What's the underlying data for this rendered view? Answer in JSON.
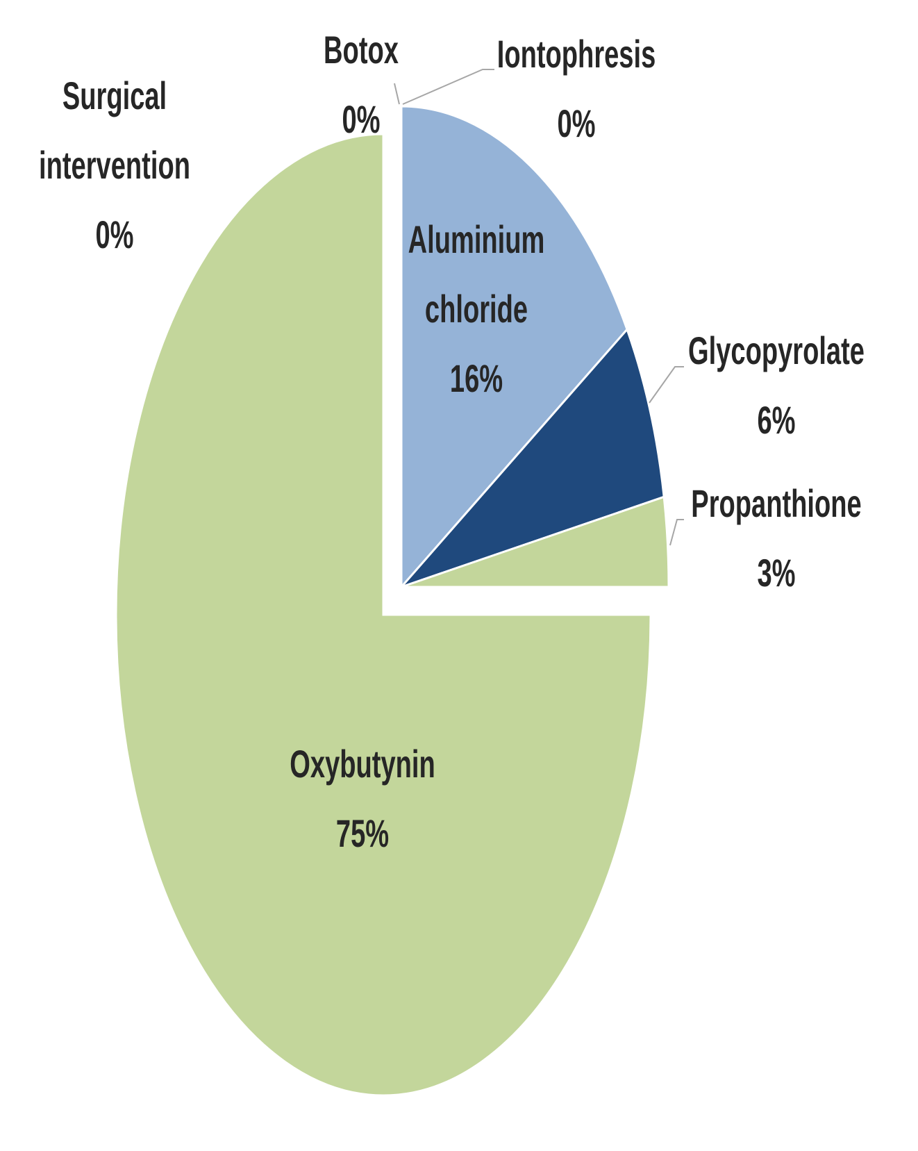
{
  "chart_data": {
    "type": "pie",
    "categories": [
      "Aluminium chloride",
      "Glycopyrolate",
      "Propanthione",
      "Oxybutynin",
      "Surgical intervention",
      "Botox",
      "Iontophresis"
    ],
    "values": [
      16,
      6,
      3,
      75,
      0,
      0,
      0
    ],
    "value_labels": [
      "16%",
      "6%",
      "3%",
      "75%",
      "0%",
      "0%",
      "0%"
    ],
    "colors": [
      "#95b3d7",
      "#1f497d",
      "#c3d69b",
      "#c3d69b",
      "#c3d69b",
      "#c3d69b",
      "#c3d69b"
    ]
  }
}
